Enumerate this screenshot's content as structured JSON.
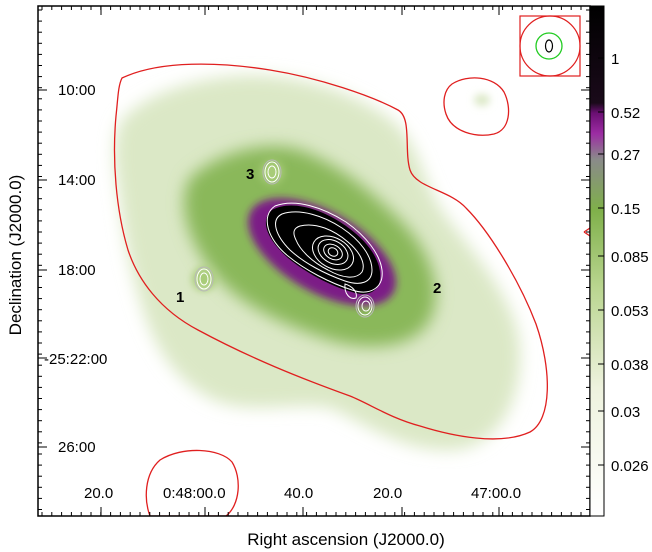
{
  "chart_data": {
    "type": "heatmap",
    "title": "",
    "xlabel": "Right ascension (J2000.0)",
    "ylabel": "Declination (J2000.0)",
    "x_ticks": [
      "20.0",
      "0:48:00.0",
      "40.0",
      "20.0",
      "47:00.0"
    ],
    "y_ticks": [
      "10:00",
      "14:00",
      "18:00",
      "-25:22:00",
      "26:00"
    ],
    "colorbar": {
      "tick_labels": [
        "1",
        "0.52",
        "0.27",
        "0.15",
        "0.085",
        "0.053",
        "0.038",
        "0.03",
        "0.026"
      ],
      "colormap": [
        "#000000",
        "#1a0a1a",
        "#6b0f73",
        "#9c2ca3",
        "#7d6b83",
        "#8a8a8a",
        "#7fb04a",
        "#a8cc78",
        "#d2e4b4",
        "#f1f4e6",
        "#ffffff"
      ]
    },
    "source_labels": [
      "1",
      "2",
      "3"
    ],
    "colors": {
      "outer_contour": "#e01f1f",
      "inner_contours": "#ffffff",
      "beam_circle": "#e01f1f",
      "beam_ellipse_outer": "#22cc22",
      "beam_ellipse_inner": "#000000",
      "core": "#000000",
      "halo": "#7b1a86",
      "disk": "#8ab85a",
      "outer": "#dbe8c6"
    }
  }
}
